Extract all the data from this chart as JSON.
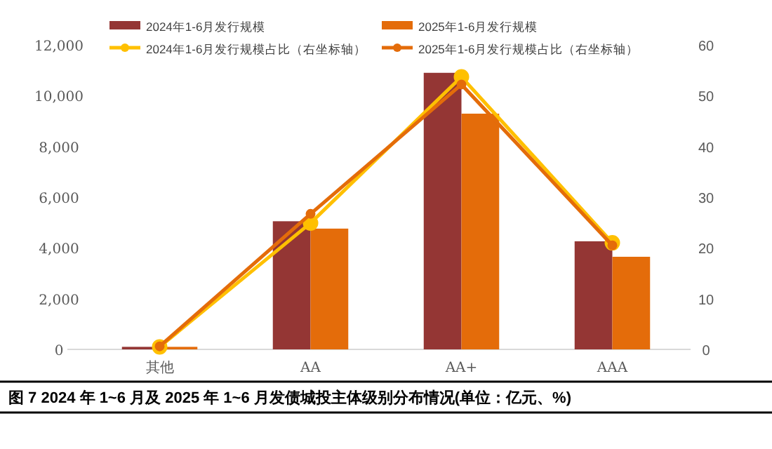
{
  "chart_data": {
    "type": "bar",
    "title": "图 7  2024 年 1~6 月及 2025 年 1~6 月发债城投主体级别分布情况(单位：亿元、%)",
    "categories": [
      "其他",
      "AA",
      "AA+",
      "AAA"
    ],
    "series": [
      {
        "name": "2024年1-6月发行规模",
        "color": "#943634",
        "values": [
          100,
          5050,
          10900,
          4260
        ]
      },
      {
        "name": "2025年1-6月发行规模",
        "color": "#e46c0a",
        "values": [
          100,
          4760,
          9290,
          3650
        ]
      },
      {
        "name": "2024年1-6月发行规模占比（右坐标轴）",
        "type": "line",
        "axis": "y2",
        "color": "#ffc000",
        "values": [
          0.5,
          24.9,
          53.7,
          21.0
        ]
      },
      {
        "name": "2025年1-6月发行规模占比（右坐标轴）",
        "type": "line",
        "axis": "y2",
        "color": "#e46c0a",
        "values": [
          0.6,
          26.7,
          52.2,
          20.5
        ]
      }
    ],
    "ylim": [
      0,
      12000
    ],
    "yticks": [
      0,
      {
        "value": 2000,
        "label": "2,000"
      },
      {
        "value": 4000,
        "label": "4,000"
      },
      {
        "value": 6000,
        "label": "6,000"
      },
      {
        "value": 8000,
        "label": "8,000"
      },
      {
        "value": 10000,
        "label": "10,000"
      },
      {
        "value": 12000,
        "label": "12,000"
      }
    ],
    "y2lim": [
      0,
      60
    ],
    "y2ticks": [
      0,
      10,
      20,
      30,
      40,
      50,
      60
    ],
    "grid": false,
    "legend": "top",
    "marker": "circle"
  }
}
